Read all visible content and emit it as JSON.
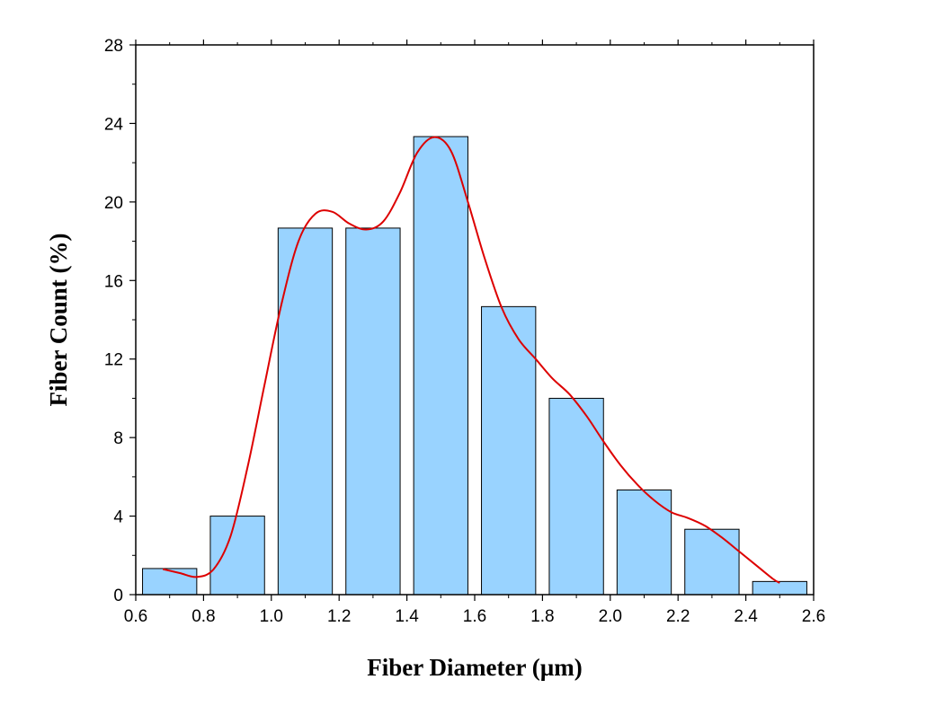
{
  "chart_data": {
    "type": "bar",
    "title": "",
    "xlabel": "Fiber Diameter (µm)",
    "ylabel": "Fiber Count (%)",
    "xlim": [
      0.6,
      2.6
    ],
    "ylim": [
      0,
      28
    ],
    "x_ticks": [
      "0.6",
      "0.8",
      "1.0",
      "1.2",
      "1.4",
      "1.6",
      "1.8",
      "2.0",
      "2.2",
      "2.4",
      "2.6"
    ],
    "y_ticks": [
      "0",
      "4",
      "8",
      "12",
      "16",
      "20",
      "24",
      "28"
    ],
    "grid": false,
    "legend": "none",
    "bar_color": "#99d3ff",
    "bar_edge_color": "#000000",
    "curve_color": "#dd0000",
    "bin_width": 0.2,
    "bins": [
      {
        "center": 0.7,
        "value": 1.33
      },
      {
        "center": 0.9,
        "value": 4.0
      },
      {
        "center": 1.1,
        "value": 18.67
      },
      {
        "center": 1.3,
        "value": 18.67
      },
      {
        "center": 1.5,
        "value": 23.33
      },
      {
        "center": 1.7,
        "value": 14.67
      },
      {
        "center": 1.9,
        "value": 10.0
      },
      {
        "center": 2.1,
        "value": 5.33
      },
      {
        "center": 2.3,
        "value": 3.33
      },
      {
        "center": 2.5,
        "value": 0.67
      }
    ],
    "fit_curve": [
      [
        0.68,
        1.3
      ],
      [
        0.73,
        1.1
      ],
      [
        0.78,
        0.9
      ],
      [
        0.83,
        1.3
      ],
      [
        0.88,
        3.0
      ],
      [
        0.93,
        6.5
      ],
      [
        0.98,
        10.7
      ],
      [
        1.03,
        14.8
      ],
      [
        1.08,
        18.0
      ],
      [
        1.13,
        19.4
      ],
      [
        1.18,
        19.5
      ],
      [
        1.23,
        18.9
      ],
      [
        1.28,
        18.6
      ],
      [
        1.33,
        19.0
      ],
      [
        1.38,
        20.5
      ],
      [
        1.43,
        22.5
      ],
      [
        1.48,
        23.3
      ],
      [
        1.53,
        22.6
      ],
      [
        1.58,
        20.0
      ],
      [
        1.63,
        17.1
      ],
      [
        1.68,
        14.6
      ],
      [
        1.73,
        13.0
      ],
      [
        1.78,
        12.0
      ],
      [
        1.83,
        11.0
      ],
      [
        1.88,
        10.2
      ],
      [
        1.93,
        9.1
      ],
      [
        1.98,
        7.8
      ],
      [
        2.03,
        6.6
      ],
      [
        2.08,
        5.6
      ],
      [
        2.13,
        4.8
      ],
      [
        2.18,
        4.2
      ],
      [
        2.23,
        3.9
      ],
      [
        2.28,
        3.5
      ],
      [
        2.33,
        2.9
      ],
      [
        2.38,
        2.2
      ],
      [
        2.43,
        1.5
      ],
      [
        2.48,
        0.8
      ],
      [
        2.5,
        0.6
      ]
    ]
  }
}
